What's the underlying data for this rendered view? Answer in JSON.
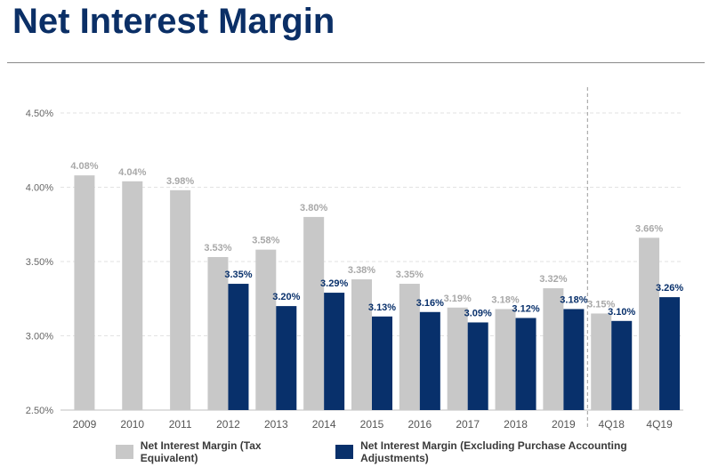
{
  "title": "Net Interest Margin",
  "colors": {
    "series1": "#c8c8c8",
    "series2": "#08306b",
    "label1": "#a8a8a8",
    "label2": "#08306b",
    "title": "#0b2f66"
  },
  "chart_data": {
    "type": "bar",
    "title": "",
    "xlabel": "",
    "ylabel": "",
    "ylim": [
      2.5,
      4.5
    ],
    "yticks": [
      "2.50%",
      "3.00%",
      "3.50%",
      "4.00%",
      "4.50%"
    ],
    "grid": true,
    "legend_position": "bottom",
    "categories": [
      "2009",
      "2010",
      "2011",
      "2012",
      "2013",
      "2014",
      "2015",
      "2016",
      "2017",
      "2018",
      "2019",
      "4Q18",
      "4Q19"
    ],
    "series": [
      {
        "name": "Net Interest Margin (Tax Equivalent)",
        "values": [
          4.08,
          4.04,
          3.98,
          3.53,
          3.58,
          3.8,
          3.38,
          3.35,
          3.19,
          3.18,
          3.32,
          3.15,
          3.66
        ],
        "labels": [
          "4.08%",
          "4.04%",
          "3.98%",
          "3.53%",
          "3.58%",
          "3.80%",
          "3.38%",
          "3.35%",
          "3.19%",
          "3.18%",
          "3.32%",
          "3.15%",
          "3.66%"
        ]
      },
      {
        "name": "Net Interest Margin (Excluding Purchase Accounting Adjustments)",
        "values": [
          null,
          null,
          null,
          3.35,
          3.2,
          3.29,
          3.13,
          3.16,
          3.09,
          3.12,
          3.18,
          3.1,
          3.26
        ],
        "labels": [
          null,
          null,
          null,
          "3.35%",
          "3.20%",
          "3.29%",
          "3.13%",
          "3.16%",
          "3.09%",
          "3.12%",
          "3.18%",
          "3.10%",
          "3.26%"
        ]
      }
    ],
    "separator_after_category": "2019"
  }
}
